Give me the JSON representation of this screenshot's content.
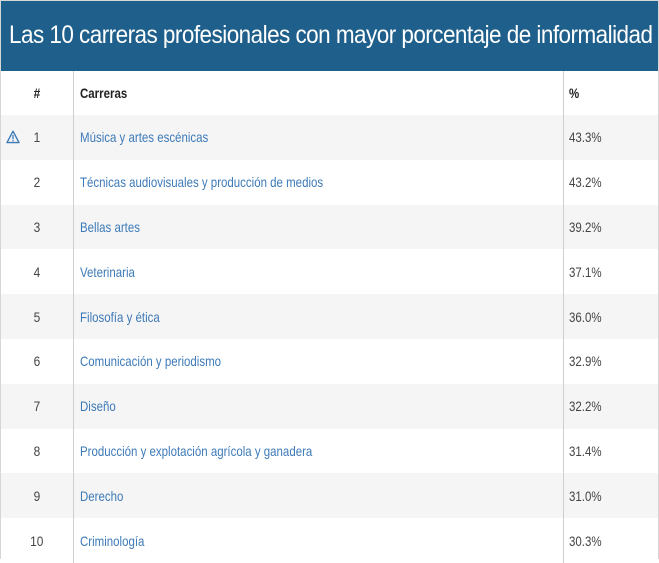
{
  "title": "Las 10 carreras profesionales con mayor porcentaje de informalidad",
  "colors": {
    "header_bg": "#1f5f8b",
    "link": "#3d7ab8",
    "stripe": "#f5f5f5"
  },
  "table": {
    "headers": {
      "index": "#",
      "name": "Carreras",
      "percent": "%"
    },
    "rows": [
      {
        "index": "1",
        "name": "Música y artes escénicas",
        "percent": "43.3%",
        "icon": "warning-triangle-icon"
      },
      {
        "index": "2",
        "name": "Técnicas audiovisuales y producción de medios",
        "percent": "43.2%"
      },
      {
        "index": "3",
        "name": "Bellas artes",
        "percent": "39.2%"
      },
      {
        "index": "4",
        "name": "Veterinaria",
        "percent": "37.1%"
      },
      {
        "index": "5",
        "name": "Filosofía y ética",
        "percent": "36.0%"
      },
      {
        "index": "6",
        "name": "Comunicación y periodismo",
        "percent": "32.9%"
      },
      {
        "index": "7",
        "name": "Diseño",
        "percent": "32.2%"
      },
      {
        "index": "8",
        "name": "Producción y explotación agrícola y ganadera",
        "percent": "31.4%"
      },
      {
        "index": "9",
        "name": "Derecho",
        "percent": "31.0%"
      },
      {
        "index": "10",
        "name": "Criminología",
        "percent": "30.3%"
      }
    ]
  }
}
